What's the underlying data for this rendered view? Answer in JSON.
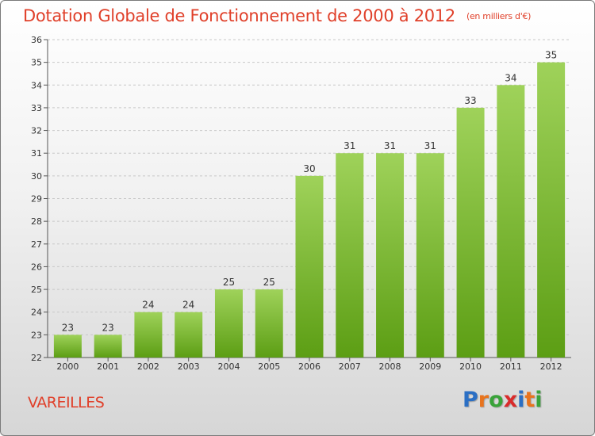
{
  "title": "Dotation Globale de Fonctionnement de 2000 à 2012",
  "unit": "(en milliers d'€)",
  "place": "VAREILLES",
  "brand": {
    "letters": [
      "P",
      "r",
      "o",
      "x",
      "i",
      "t",
      "i"
    ],
    "colors": [
      "#2b6fc4",
      "#e8741e",
      "#3aa33a",
      "#d92b2b",
      "#2b6fc4",
      "#e8741e",
      "#3aa33a"
    ]
  },
  "colors": {
    "bar_top": "#9fd25a",
    "bar_bottom": "#5c9e14",
    "title": "#e0402a"
  },
  "chart_data": {
    "type": "bar",
    "title": "Dotation Globale de Fonctionnement de 2000 à 2012",
    "xlabel": "",
    "ylabel": "",
    "categories": [
      "2000",
      "2001",
      "2002",
      "2003",
      "2004",
      "2005",
      "2006",
      "2007",
      "2008",
      "2009",
      "2010",
      "2011",
      "2012"
    ],
    "values": [
      23,
      23,
      24,
      24,
      25,
      25,
      30,
      31,
      31,
      31,
      33,
      34,
      35
    ],
    "ylim": [
      22,
      36
    ],
    "yticks": [
      22,
      23,
      24,
      25,
      26,
      27,
      28,
      29,
      30,
      31,
      32,
      33,
      34,
      35,
      36
    ],
    "grid": true
  }
}
